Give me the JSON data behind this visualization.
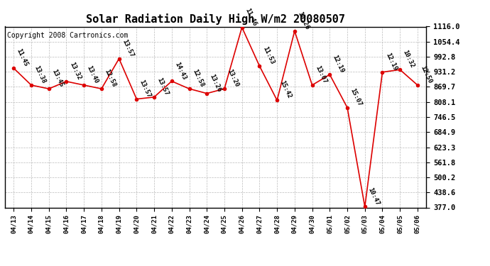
{
  "title": "Solar Radiation Daily High W/m2 20080507",
  "copyright": "Copyright 2008 Cartronics.com",
  "x_labels": [
    "04/13",
    "04/14",
    "04/15",
    "04/16",
    "04/17",
    "04/18",
    "04/19",
    "04/20",
    "04/21",
    "04/22",
    "04/23",
    "04/24",
    "04/25",
    "04/26",
    "04/27",
    "04/28",
    "04/29",
    "04/30",
    "05/01",
    "05/02",
    "05/03",
    "05/04",
    "05/05",
    "05/06"
  ],
  "values": [
    946,
    877,
    862,
    892,
    877,
    862,
    985,
    820,
    828,
    893,
    862,
    843,
    862,
    1113,
    955,
    815,
    1098,
    877,
    920,
    785,
    380,
    930,
    940,
    877
  ],
  "time_labels": [
    "11:45",
    "13:38",
    "13:45",
    "13:32",
    "13:40",
    "12:58",
    "13:57",
    "13:57",
    "13:57",
    "14:43",
    "12:58",
    "13:26",
    "13:20",
    "11:46",
    "11:53",
    "15:42",
    "12:26",
    "13:07",
    "12:19",
    "15:07",
    "10:47",
    "12:19",
    "10:32",
    "12:50"
  ],
  "y_ticks": [
    377.0,
    438.6,
    500.2,
    561.8,
    623.3,
    684.9,
    746.5,
    808.1,
    869.7,
    931.2,
    992.8,
    1054.4,
    1116.0
  ],
  "y_min": 377.0,
  "y_max": 1116.0,
  "line_color": "#dd0000",
  "marker_color": "#dd0000",
  "bg_color": "#ffffff",
  "grid_color": "#bbbbbb",
  "title_fontsize": 11,
  "copyright_fontsize": 7,
  "label_fontsize": 6.5
}
